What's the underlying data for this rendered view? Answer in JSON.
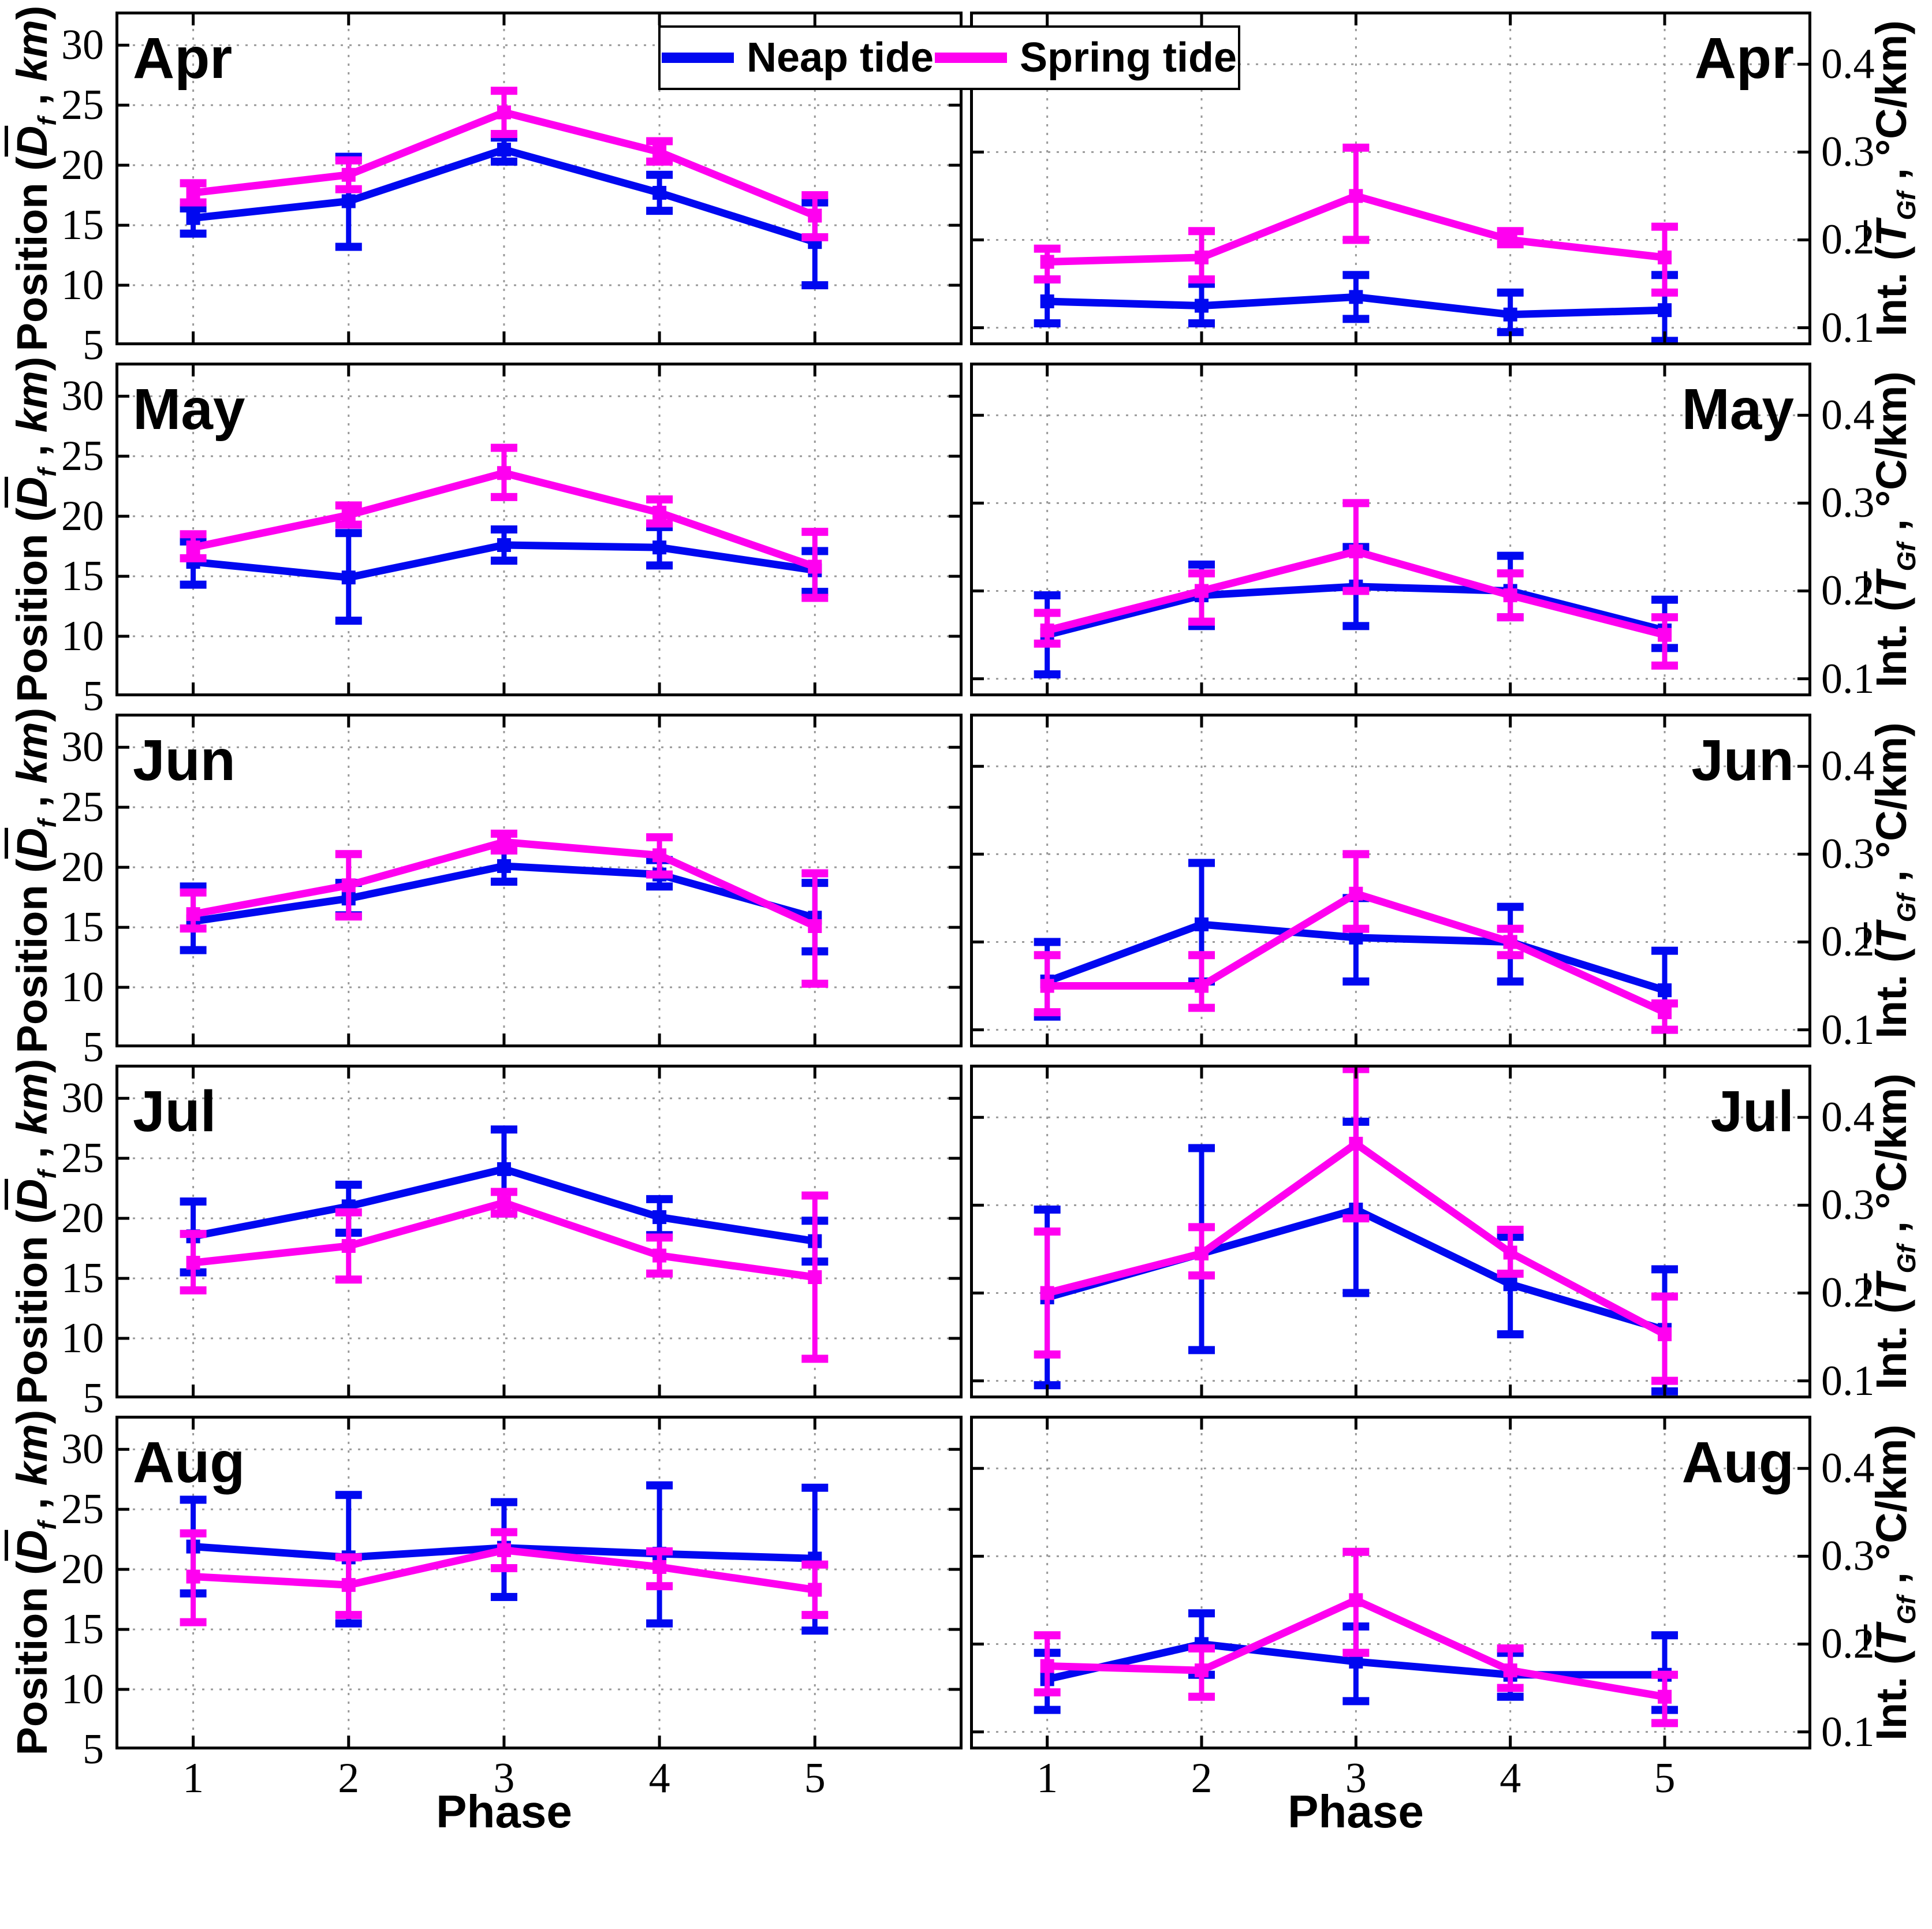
{
  "figure": {
    "type": "multi-panel-line-errorbar",
    "rows": [
      "Apr",
      "May",
      "Jun",
      "Jul",
      "Aug"
    ],
    "columns": [
      "Position",
      "Intensity"
    ]
  },
  "legend": {
    "items": [
      {
        "label": "Neap tide",
        "color": "#0008f0"
      },
      {
        "label": "Spring tide",
        "color": "#ff00f0"
      }
    ]
  },
  "axes": {
    "x": {
      "label": "Phase",
      "ticks": [
        1,
        2,
        3,
        4,
        5
      ],
      "range": [
        0.5,
        5.95
      ]
    },
    "left_y": {
      "ticks": [
        5,
        10,
        15,
        20,
        25,
        30
      ],
      "range": [
        5,
        32.8
      ],
      "label_text": "Position (Df , km)",
      "label_segments": [
        {
          "t": "Position (",
          "style": "plain"
        },
        {
          "t": "D",
          "style": "sym"
        },
        {
          "t": "f",
          "style": "sub"
        },
        {
          "t": " , ",
          "style": "plain"
        },
        {
          "t": "km",
          "style": "italic"
        },
        {
          "t": ")",
          "style": "plain"
        }
      ]
    },
    "right_y": {
      "ticks": [
        0.1,
        0.2,
        0.3,
        0.4
      ],
      "range": [
        0.08,
        0.46
      ],
      "label_text": "Int. (TGf , °C/km)",
      "label_segments": [
        {
          "t": "Int. (",
          "style": "plain"
        },
        {
          "t": "T",
          "style": "sym"
        },
        {
          "t": "Gf",
          "style": "sub"
        },
        {
          "t": " , ",
          "style": "plain"
        },
        {
          "t": "°C/km",
          "style": "plain"
        },
        {
          "t": ")",
          "style": "plain"
        }
      ]
    }
  },
  "chart_data": [
    {
      "month": "Apr",
      "measure": "position",
      "type": "line_errorbar",
      "unit": "km",
      "phases": [
        1,
        2,
        3,
        4,
        5
      ],
      "series": [
        {
          "name": "Neap tide",
          "y": [
            15.6,
            17.0,
            21.3,
            17.7,
            13.6
          ],
          "err_lo": [
            14.3,
            13.2,
            20.3,
            16.2,
            10.0
          ],
          "err_hi": [
            16.4,
            20.7,
            22.3,
            19.2,
            16.9
          ]
        },
        {
          "name": "Spring tide",
          "y": [
            17.7,
            19.2,
            24.4,
            21.1,
            15.8
          ],
          "err_lo": [
            16.9,
            18.0,
            22.6,
            20.3,
            14.0
          ],
          "err_hi": [
            18.5,
            20.4,
            26.2,
            22.0,
            17.5
          ]
        }
      ]
    },
    {
      "month": "Apr",
      "measure": "intensity",
      "type": "line_errorbar",
      "unit": "°C/km",
      "phases": [
        1,
        2,
        3,
        4,
        5
      ],
      "series": [
        {
          "name": "Neap tide",
          "y": [
            0.13,
            0.125,
            0.135,
            0.115,
            0.12
          ],
          "err_lo": [
            0.105,
            0.105,
            0.11,
            0.095,
            0.085
          ],
          "err_hi": [
            0.155,
            0.15,
            0.16,
            0.14,
            0.16
          ]
        },
        {
          "name": "Spring tide",
          "y": [
            0.175,
            0.18,
            0.25,
            0.2,
            0.18
          ],
          "err_lo": [
            0.155,
            0.155,
            0.2,
            0.195,
            0.14
          ],
          "err_hi": [
            0.19,
            0.21,
            0.305,
            0.21,
            0.215
          ]
        }
      ]
    },
    {
      "month": "May",
      "measure": "position",
      "type": "line_errorbar",
      "unit": "km",
      "phases": [
        1,
        2,
        3,
        4,
        5
      ],
      "series": [
        {
          "name": "Neap tide",
          "y": [
            16.2,
            14.9,
            17.6,
            17.4,
            15.5
          ],
          "err_lo": [
            14.3,
            11.3,
            16.3,
            15.9,
            13.7
          ],
          "err_hi": [
            17.9,
            18.6,
            18.9,
            19.1,
            17.1
          ]
        },
        {
          "name": "Spring tide",
          "y": [
            17.4,
            20.1,
            23.6,
            20.3,
            15.8
          ],
          "err_lo": [
            16.5,
            19.3,
            21.6,
            19.4,
            13.2
          ],
          "err_hi": [
            18.5,
            20.9,
            25.7,
            21.4,
            18.7
          ]
        }
      ]
    },
    {
      "month": "May",
      "measure": "intensity",
      "type": "line_errorbar",
      "unit": "°C/km",
      "phases": [
        1,
        2,
        3,
        4,
        5
      ],
      "series": [
        {
          "name": "Neap tide",
          "y": [
            0.15,
            0.195,
            0.205,
            0.2,
            0.155
          ],
          "err_lo": [
            0.105,
            0.16,
            0.16,
            0.17,
            0.135
          ],
          "err_hi": [
            0.195,
            0.23,
            0.25,
            0.24,
            0.19
          ]
        },
        {
          "name": "Spring tide",
          "y": [
            0.155,
            0.2,
            0.245,
            0.195,
            0.15
          ],
          "err_lo": [
            0.14,
            0.165,
            0.2,
            0.17,
            0.115
          ],
          "err_hi": [
            0.175,
            0.22,
            0.3,
            0.22,
            0.17
          ]
        }
      ]
    },
    {
      "month": "Jun",
      "measure": "position",
      "type": "line_errorbar",
      "unit": "km",
      "phases": [
        1,
        2,
        3,
        4,
        5
      ],
      "series": [
        {
          "name": "Neap tide",
          "y": [
            15.5,
            17.4,
            20.1,
            19.4,
            15.8
          ],
          "err_lo": [
            13.1,
            16.0,
            18.8,
            18.4,
            13.0
          ],
          "err_hi": [
            18.4,
            18.7,
            21.4,
            20.6,
            18.7
          ]
        },
        {
          "name": "Spring tide",
          "y": [
            16.1,
            18.5,
            22.1,
            21.0,
            15.1
          ],
          "err_lo": [
            14.9,
            15.9,
            21.4,
            19.4,
            10.3
          ],
          "err_hi": [
            17.9,
            21.1,
            22.8,
            22.5,
            19.5
          ]
        }
      ]
    },
    {
      "month": "Jun",
      "measure": "intensity",
      "type": "line_errorbar",
      "unit": "°C/km",
      "phases": [
        1,
        2,
        3,
        4,
        5
      ],
      "series": [
        {
          "name": "Neap tide",
          "y": [
            0.155,
            0.22,
            0.205,
            0.2,
            0.145
          ],
          "err_lo": [
            0.115,
            0.155,
            0.155,
            0.155,
            0.1
          ],
          "err_hi": [
            0.2,
            0.29,
            0.25,
            0.24,
            0.19
          ]
        },
        {
          "name": "Spring tide",
          "y": [
            0.15,
            0.15,
            0.255,
            0.2,
            0.12
          ],
          "err_lo": [
            0.12,
            0.125,
            0.215,
            0.185,
            0.1
          ],
          "err_hi": [
            0.185,
            0.185,
            0.3,
            0.215,
            0.13
          ]
        }
      ]
    },
    {
      "month": "Jul",
      "measure": "position",
      "type": "line_errorbar",
      "unit": "km",
      "phases": [
        1,
        2,
        3,
        4,
        5
      ],
      "series": [
        {
          "name": "Neap tide",
          "y": [
            18.5,
            21.0,
            24.1,
            20.1,
            18.1
          ],
          "err_lo": [
            15.5,
            18.8,
            20.4,
            18.6,
            16.4
          ],
          "err_hi": [
            21.4,
            22.8,
            27.4,
            21.6,
            19.8
          ]
        },
        {
          "name": "Spring tide",
          "y": [
            16.3,
            17.7,
            21.3,
            16.9,
            15.1
          ],
          "err_lo": [
            14.0,
            14.9,
            20.4,
            15.4,
            8.3
          ],
          "err_hi": [
            18.7,
            20.5,
            22.2,
            18.4,
            21.9
          ]
        }
      ]
    },
    {
      "month": "Jul",
      "measure": "intensity",
      "type": "line_errorbar",
      "unit": "°C/km",
      "phases": [
        1,
        2,
        3,
        4,
        5
      ],
      "series": [
        {
          "name": "Neap tide",
          "y": [
            0.195,
            0.245,
            0.295,
            0.21,
            0.158
          ],
          "err_lo": [
            0.095,
            0.135,
            0.2,
            0.153,
            0.088
          ],
          "err_hi": [
            0.295,
            0.365,
            0.395,
            0.264,
            0.227
          ]
        },
        {
          "name": "Spring tide",
          "y": [
            0.2,
            0.245,
            0.37,
            0.246,
            0.153
          ],
          "err_lo": [
            0.13,
            0.22,
            0.285,
            0.222,
            0.1
          ],
          "err_hi": [
            0.27,
            0.275,
            0.455,
            0.272,
            0.196
          ]
        }
      ]
    },
    {
      "month": "Aug",
      "measure": "position",
      "type": "line_errorbar",
      "unit": "km",
      "phases": [
        1,
        2,
        3,
        4,
        5
      ],
      "series": [
        {
          "name": "Neap tide",
          "y": [
            21.9,
            21.0,
            21.8,
            21.3,
            20.9
          ],
          "err_lo": [
            18.0,
            15.5,
            17.7,
            15.5,
            14.9
          ],
          "err_hi": [
            25.8,
            26.2,
            25.6,
            27.0,
            26.8
          ]
        },
        {
          "name": "Spring tide",
          "y": [
            19.4,
            18.7,
            21.6,
            20.2,
            18.3
          ],
          "err_lo": [
            15.6,
            16.2,
            20.1,
            18.6,
            16.2
          ],
          "err_hi": [
            23.0,
            21.0,
            23.1,
            21.5,
            20.4
          ]
        }
      ]
    },
    {
      "month": "Aug",
      "measure": "intensity",
      "type": "line_errorbar",
      "unit": "°C/km",
      "phases": [
        1,
        2,
        3,
        4,
        5
      ],
      "series": [
        {
          "name": "Neap tide",
          "y": [
            0.16,
            0.2,
            0.18,
            0.165,
            0.165
          ],
          "err_lo": [
            0.125,
            0.165,
            0.135,
            0.14,
            0.125
          ],
          "err_hi": [
            0.19,
            0.235,
            0.22,
            0.19,
            0.21
          ]
        },
        {
          "name": "Spring tide",
          "y": [
            0.175,
            0.17,
            0.25,
            0.17,
            0.14
          ],
          "err_lo": [
            0.145,
            0.14,
            0.19,
            0.15,
            0.11
          ],
          "err_hi": [
            0.21,
            0.195,
            0.305,
            0.195,
            0.165
          ]
        }
      ]
    }
  ]
}
